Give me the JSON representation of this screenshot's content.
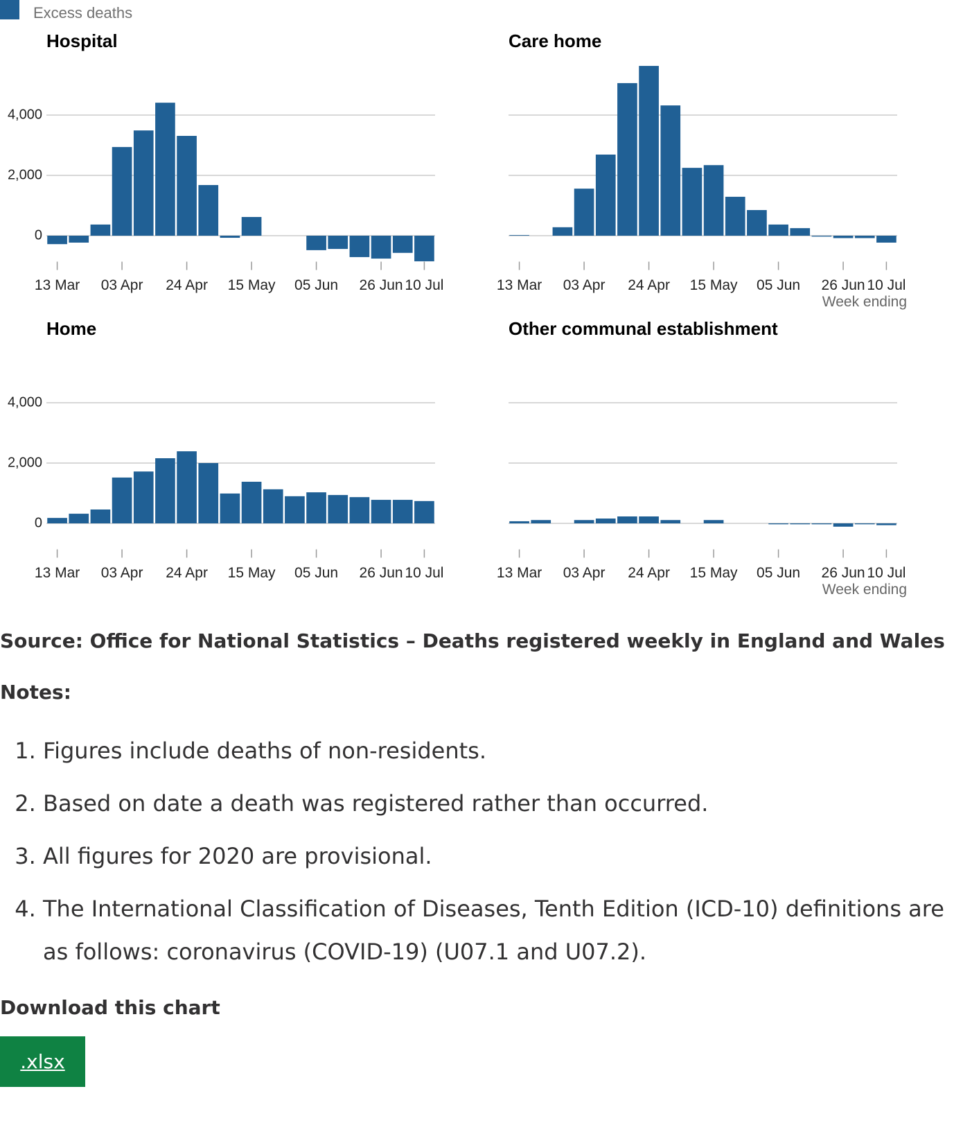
{
  "legend": {
    "name": "Excess deaths",
    "color": "#206095"
  },
  "chart_data": [
    {
      "type": "bar",
      "title": "Hospital",
      "color": "#206095",
      "ytick_labels": true,
      "categories": [
        "13 Mar",
        null,
        null,
        "03 Apr",
        null,
        null,
        "24 Apr",
        null,
        null,
        "15 May",
        null,
        null,
        "05 Jun",
        null,
        null,
        "26 Jun",
        null,
        "10 Jul"
      ],
      "values": [
        -280,
        -230,
        370,
        2940,
        3490,
        4410,
        3310,
        1680,
        -70,
        620,
        0,
        0,
        -480,
        -440,
        -710,
        -760,
        -570,
        -850
      ],
      "ylim": [
        -1000,
        6000
      ],
      "yticks": [
        0,
        {
          "value": 2000,
          "label": "2,000"
        },
        {
          "value": 4000,
          "label": "4,000"
        }
      ],
      "grid": true
    },
    {
      "type": "bar",
      "title": "Care home",
      "color": "#206095",
      "ytick_labels": false,
      "xlabel": "Week ending",
      "categories": [
        "13 Mar",
        null,
        null,
        "03 Apr",
        null,
        null,
        "24 Apr",
        null,
        null,
        "15 May",
        null,
        null,
        "05 Jun",
        null,
        null,
        "26 Jun",
        null,
        "10 Jul"
      ],
      "values": [
        20,
        0,
        280,
        1560,
        2690,
        5060,
        5630,
        4320,
        2250,
        2340,
        1290,
        850,
        370,
        250,
        -30,
        -80,
        -80,
        -230
      ],
      "ylim": [
        -1000,
        6000
      ],
      "yticks": [
        0,
        {
          "value": 2000,
          "label": "2,000"
        },
        {
          "value": 4000,
          "label": "4,000"
        }
      ],
      "grid": true
    },
    {
      "type": "bar",
      "title": "Home",
      "color": "#206095",
      "ytick_labels": true,
      "categories": [
        "13 Mar",
        null,
        null,
        "03 Apr",
        null,
        null,
        "24 Apr",
        null,
        null,
        "15 May",
        null,
        null,
        "05 Jun",
        null,
        null,
        "26 Jun",
        null,
        "10 Jul"
      ],
      "values": [
        180,
        320,
        460,
        1520,
        1720,
        2160,
        2390,
        2000,
        990,
        1380,
        1130,
        900,
        1030,
        940,
        870,
        780,
        780,
        740
      ],
      "ylim": [
        -1000,
        6000
      ],
      "yticks": [
        0,
        {
          "value": 2000,
          "label": "2,000"
        },
        {
          "value": 4000,
          "label": "4,000"
        }
      ],
      "grid": true
    },
    {
      "type": "bar",
      "title": "Other communal establishment",
      "color": "#206095",
      "ytick_labels": false,
      "xlabel": "Week ending",
      "categories": [
        "13 Mar",
        null,
        null,
        "03 Apr",
        null,
        null,
        "24 Apr",
        null,
        null,
        "15 May",
        null,
        null,
        "05 Jun",
        null,
        null,
        "26 Jun",
        null,
        "10 Jul"
      ],
      "values": [
        70,
        110,
        0,
        110,
        160,
        230,
        230,
        110,
        0,
        110,
        0,
        0,
        -30,
        -30,
        -30,
        -110,
        -30,
        -60
      ],
      "ylim": [
        -1000,
        6000
      ],
      "yticks": [
        0,
        {
          "value": 2000,
          "label": "2,000"
        },
        {
          "value": 4000,
          "label": "4,000"
        }
      ],
      "grid": true
    }
  ],
  "source": "Source: Office for National Statistics – Deaths registered weekly in England and Wales",
  "notes": {
    "title": "Notes:",
    "items": [
      "Figures include deaths of non-residents.",
      "Based on date a death was registered rather than occurred.",
      "All figures for 2020 are provisional.",
      "The International Classification of Diseases, Tenth Edition (ICD-10) definitions are as follows: coronavirus (COVID-19) (U07.1 and U07.2)."
    ]
  },
  "download": {
    "title": "Download this chart",
    "button": ".xlsx"
  }
}
